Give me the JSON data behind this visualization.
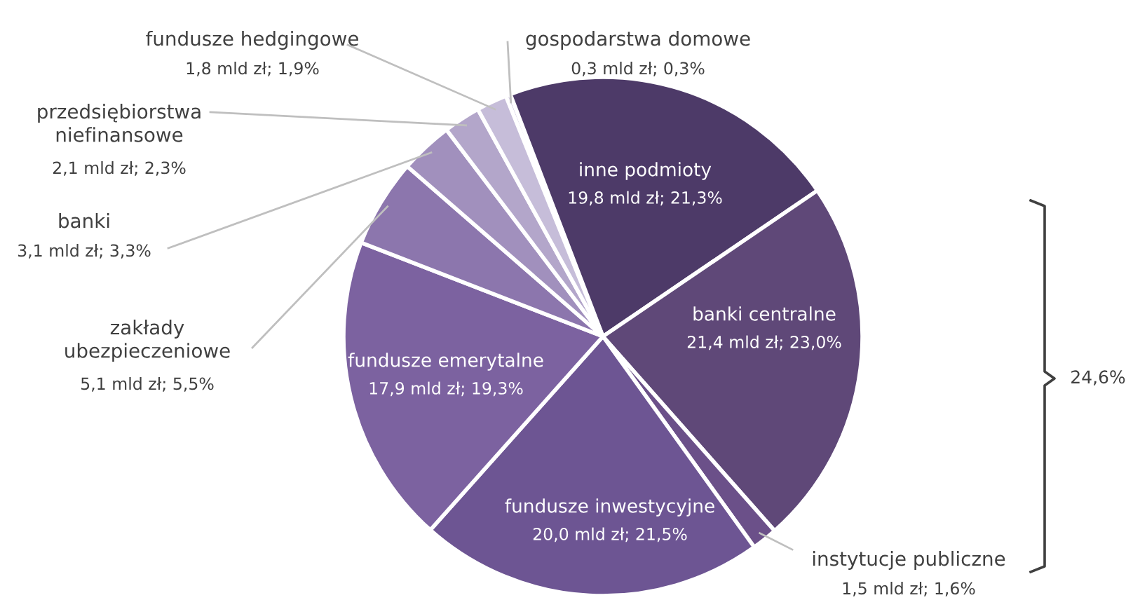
{
  "chart_data": {
    "type": "pie",
    "categories": [
      "gospodarstwa domowe",
      "inne podmioty",
      "banki centralne",
      "instytucje publiczne",
      "fundusze inwestycyjne",
      "fundusze emerytalne",
      "zakłady ubezpieczeniowe",
      "banki",
      "przedsiębiorstwa niefinansowe",
      "fundusze hedgingowe"
    ],
    "values": [
      0.3,
      21.3,
      23.0,
      1.6,
      21.5,
      19.3,
      5.5,
      3.3,
      2.3,
      1.9
    ],
    "value_labels": [
      "0,3 mld zł; 0,3%",
      "19,8 mld zł; 21,3%",
      "21,4 mld zł; 23,0%",
      "1,5 mld zł; 1,6%",
      "20,0 mld zł; 21,5%",
      "17,9 mld zł; 19,3%",
      "5,1 mld zł; 5,5%",
      "3,1 mld zł; 3,3%",
      "2,1 mld zł; 2,3%",
      "1,8 mld zł; 1,9%"
    ],
    "colors": [
      "#d6d0e3",
      "#4d3a68",
      "#5f4878",
      "#6b5089",
      "#6d5593",
      "#7c62a0",
      "#8c76ad",
      "#a190bd",
      "#b3a6ca",
      "#c6bdd9"
    ],
    "annotations": [
      "24,6%"
    ]
  }
}
